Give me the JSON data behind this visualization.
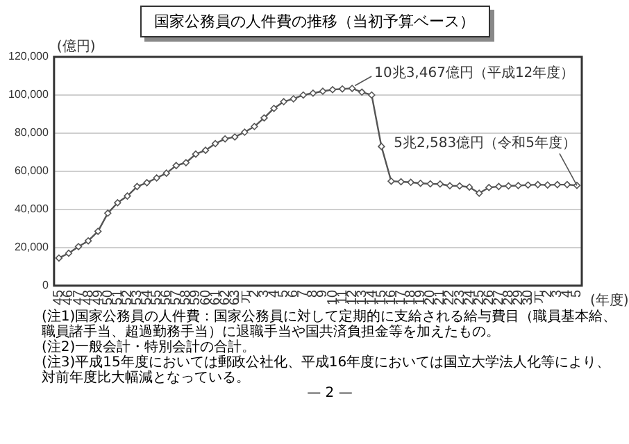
{
  "chart_data": {
    "type": "line",
    "title": "国家公務員の人件費の推移（当初予算ベース）",
    "ylabel": "(億円)",
    "xlabel": "(年度)",
    "categories": [
      "45",
      "46",
      "47",
      "48",
      "49",
      "50",
      "51",
      "52",
      "53",
      "54",
      "55",
      "56",
      "57",
      "58",
      "59",
      "60",
      "61",
      "62",
      "63",
      "元",
      "2",
      "3",
      "4",
      "5",
      "6",
      "7",
      "8",
      "9",
      "10",
      "11",
      "12",
      "13",
      "14",
      "15",
      "16",
      "17",
      "18",
      "19",
      "20",
      "21",
      "22",
      "23",
      "24",
      "25",
      "26",
      "27",
      "28",
      "29",
      "30",
      "元",
      "2",
      "3",
      "4",
      "5"
    ],
    "series": [
      {
        "color": "#555555",
        "values": [
          14500,
          17000,
          20500,
          23500,
          28500,
          38000,
          43500,
          47000,
          52000,
          54000,
          56500,
          59000,
          63000,
          64500,
          69000,
          71000,
          74500,
          77000,
          78000,
          80500,
          83500,
          88000,
          93000,
          96500,
          98000,
          100000,
          101000,
          102000,
          102800,
          103200,
          103467,
          101500,
          100000,
          73000,
          54800,
          54500,
          54200,
          53700,
          53400,
          53300,
          52400,
          52300,
          51700,
          48500,
          51500,
          52000,
          52300,
          52500,
          52800,
          53000,
          52800,
          53000,
          53000,
          52583
        ]
      }
    ],
    "ylim": [
      0,
      120000
    ],
    "yticks": [
      {
        "value": 0,
        "label": "0"
      },
      {
        "value": 20000,
        "label": "20,000"
      },
      {
        "value": 40000,
        "label": "40,000"
      },
      {
        "value": 60000,
        "label": "60,000"
      },
      {
        "value": 80000,
        "label": "80,000"
      },
      {
        "value": 100000,
        "label": "100,000"
      },
      {
        "value": 120000,
        "label": "120,000"
      }
    ],
    "grid": "y",
    "legend": false,
    "marker": "diamond",
    "line_style": "solid",
    "annotations": [
      {
        "text": "10兆3,467億円（平成12年度）",
        "x": "12",
        "y": 103467
      },
      {
        "text": "5兆2,583億円（令和5年度）",
        "y": 52583
      },
      "(注1)国家公務員の人件費：国家公務員に対して定期的に支給される給与費目（職員基本給、職員諸手当、超過勤務手当）に退職手当や国共済負担金等を加えたもの。",
      "(注2)一般会計・特別会計の合計。",
      "(注3)平成15年度においては郵政公社化、平成16年度においては国立大学法人化等により、対前年度比大幅減となっている。",
      "— 2 —"
    ]
  }
}
